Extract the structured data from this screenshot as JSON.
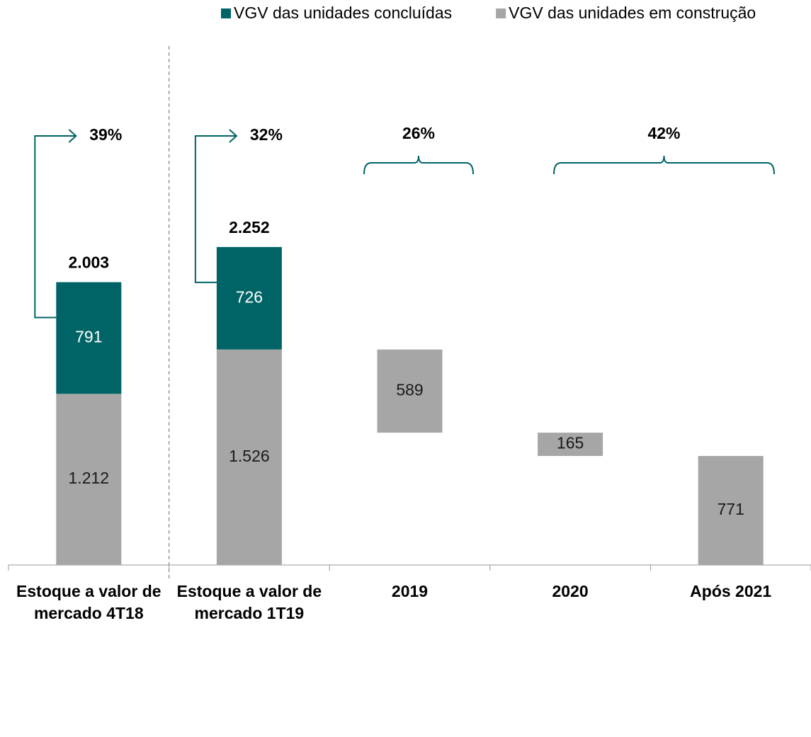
{
  "chart_data": {
    "type": "waterfall",
    "categories": [
      "Estoque a valor de mercado 4T18",
      "Estoque a valor de mercado 1T19",
      "2019",
      "2020",
      "Após 2021"
    ],
    "series": [
      {
        "name": "VGV das unidades em construção",
        "color": "#a6a6a6",
        "label_color": "#1a1a1a",
        "values": [
          1212,
          1526,
          589,
          165,
          771
        ],
        "value_labels": [
          "1.212",
          "1.526",
          "589",
          "165",
          "771"
        ]
      },
      {
        "name": "VGV das unidades concluídas",
        "color": "#006466",
        "label_color": "#ffffff",
        "values": [
          791,
          726,
          null,
          null,
          null
        ],
        "value_labels": [
          "791",
          "726",
          null,
          null,
          null
        ]
      }
    ],
    "legend_order": [
      1,
      0
    ],
    "totals": [
      2003,
      2252
    ],
    "total_labels": [
      "2.003",
      "2.252"
    ],
    "annotations": [
      "39%",
      "32%",
      "26%",
      "42%"
    ],
    "ylim": [
      0,
      3500
    ]
  }
}
